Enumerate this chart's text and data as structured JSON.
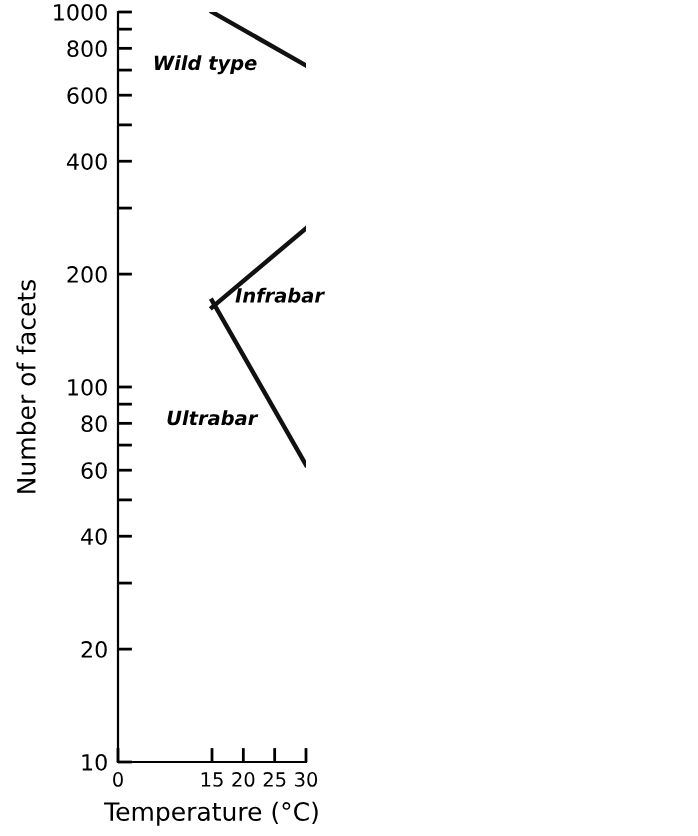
{
  "chart_data": {
    "type": "line",
    "xlabel": "Temperature (°C)",
    "ylabel": "Number of facets",
    "log": "y",
    "x": [
      15,
      30
    ],
    "series": [
      {
        "name": "Wild type",
        "color": "#111111",
        "values": [
          1000,
          720
        ]
      },
      {
        "name": "Infrabar",
        "color": "#111111",
        "values": [
          163,
          265
        ]
      },
      {
        "name": "Ultrabar",
        "color": "#111111",
        "values": [
          170,
          62
        ]
      }
    ],
    "xlim": [
      0,
      30
    ],
    "xticks": [
      0,
      15,
      20,
      25,
      30
    ],
    "ylim": [
      10,
      1000
    ],
    "yticks": [
      10,
      20,
      {
        "value": 30,
        "label": null
      },
      40,
      {
        "value": 50,
        "label": null
      },
      60,
      {
        "value": 70,
        "label": null
      },
      80,
      {
        "value": 90,
        "label": null
      },
      100,
      200,
      {
        "value": 300,
        "label": null
      },
      400,
      {
        "value": 500,
        "label": null
      },
      600,
      {
        "value": 700,
        "label": null
      },
      800,
      {
        "value": 900,
        "label": null
      },
      1000
    ],
    "grid": false,
    "legend": false,
    "marker": "none",
    "line_style": "solid"
  }
}
